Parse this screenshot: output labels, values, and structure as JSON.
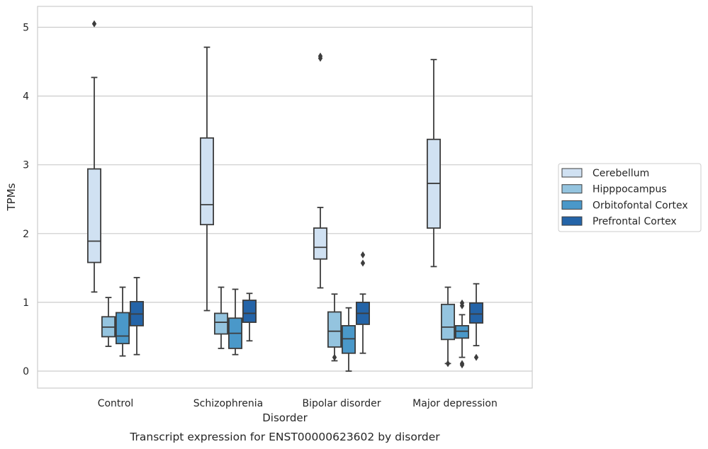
{
  "chart_data": {
    "type": "box",
    "title": "",
    "caption": "Transcript expression for ENST00000623602 by disorder",
    "xlabel": "Disorder",
    "ylabel": "TPMs",
    "ylim": [
      -0.25,
      5.3
    ],
    "yticks": [
      0,
      1,
      2,
      3,
      4,
      5
    ],
    "grid": "horizontal",
    "legend_position": "right",
    "categories": [
      "Control",
      "Schizophrenia",
      "Bipolar disorder",
      "Major depression"
    ],
    "series": [
      {
        "name": "Cerebellum",
        "color": "#d0e1f2",
        "boxes": [
          {
            "whislo": 1.15,
            "q1": 1.58,
            "med": 1.89,
            "q3": 2.94,
            "whishi": 4.27,
            "fliers": [
              5.05
            ]
          },
          {
            "whislo": 0.88,
            "q1": 2.13,
            "med": 2.42,
            "q3": 3.39,
            "whishi": 4.71,
            "fliers": []
          },
          {
            "whislo": 1.21,
            "q1": 1.63,
            "med": 1.8,
            "q3": 2.08,
            "whishi": 2.38,
            "fliers": [
              4.55,
              4.58
            ]
          },
          {
            "whislo": 1.52,
            "q1": 2.08,
            "med": 2.73,
            "q3": 3.37,
            "whishi": 4.53,
            "fliers": []
          }
        ]
      },
      {
        "name": "Hipppocampus",
        "color": "#94c4df",
        "boxes": [
          {
            "whislo": 0.36,
            "q1": 0.5,
            "med": 0.64,
            "q3": 0.79,
            "whishi": 1.07,
            "fliers": []
          },
          {
            "whislo": 0.33,
            "q1": 0.54,
            "med": 0.71,
            "q3": 0.84,
            "whishi": 1.22,
            "fliers": []
          },
          {
            "whislo": 0.15,
            "q1": 0.35,
            "med": 0.58,
            "q3": 0.86,
            "whishi": 1.12,
            "fliers": [
              0.2
            ]
          },
          {
            "whislo": 0.11,
            "q1": 0.46,
            "med": 0.64,
            "q3": 0.97,
            "whishi": 1.22,
            "fliers": [
              0.11
            ]
          }
        ]
      },
      {
        "name": "Orbitofontal Cortex",
        "color": "#4a98c9",
        "boxes": [
          {
            "whislo": 0.22,
            "q1": 0.4,
            "med": 0.51,
            "q3": 0.85,
            "whishi": 1.22,
            "fliers": []
          },
          {
            "whislo": 0.24,
            "q1": 0.33,
            "med": 0.55,
            "q3": 0.77,
            "whishi": 1.19,
            "fliers": []
          },
          {
            "whislo": 0.0,
            "q1": 0.26,
            "med": 0.47,
            "q3": 0.66,
            "whishi": 0.92,
            "fliers": []
          },
          {
            "whislo": 0.2,
            "q1": 0.48,
            "med": 0.58,
            "q3": 0.66,
            "whishi": 0.82,
            "fliers": [
              0.09,
              0.11,
              0.95,
              0.99
            ]
          }
        ]
      },
      {
        "name": "Prefrontal Cortex",
        "color": "#2464a8",
        "boxes": [
          {
            "whislo": 0.24,
            "q1": 0.66,
            "med": 0.83,
            "q3": 1.01,
            "whishi": 1.36,
            "fliers": []
          },
          {
            "whislo": 0.44,
            "q1": 0.71,
            "med": 0.84,
            "q3": 1.03,
            "whishi": 1.13,
            "fliers": []
          },
          {
            "whislo": 0.26,
            "q1": 0.68,
            "med": 0.84,
            "q3": 1.0,
            "whishi": 1.12,
            "fliers": [
              1.57,
              1.69
            ]
          },
          {
            "whislo": 0.37,
            "q1": 0.7,
            "med": 0.83,
            "q3": 0.99,
            "whishi": 1.27,
            "fliers": [
              0.2
            ]
          }
        ]
      }
    ]
  }
}
